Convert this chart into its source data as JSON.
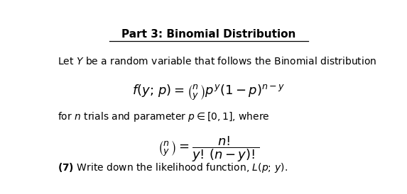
{
  "title": "Part 3: Binomial Distribution",
  "bg_color": "#ffffff",
  "text_color": "#000000",
  "fig_width": 5.73,
  "fig_height": 2.74,
  "dpi": 100,
  "line1": "Let $Y$ be a random variable that follows the Binomial distribution",
  "line2": "for $n$ trials and parameter $p \\in [0,1]$, where",
  "formula1": "$f(y;\\,p) = \\binom{n}{y}p^{y}(1-p)^{n-y}$",
  "formula2": "$\\binom{n}{y} = \\dfrac{n!}{y!\\,(n-y)!}$",
  "line3_bold": "(7)",
  "line3_rest": " Write down the likelihood function, $L(p;\\,y)$."
}
